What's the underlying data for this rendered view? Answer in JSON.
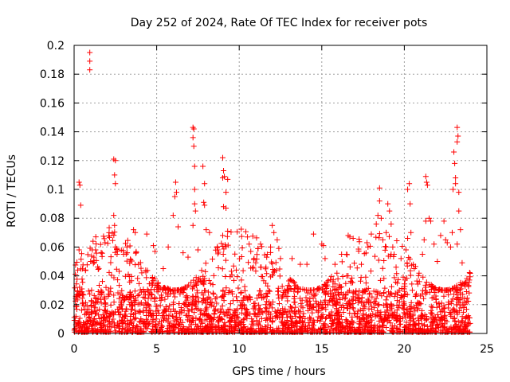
{
  "chart_data": {
    "type": "scatter",
    "title": "Day 252 of 2024, Rate Of TEC Index for receiver pots",
    "xlabel": "GPS time / hours",
    "ylabel": "ROTI / TECUs",
    "xlim": [
      0,
      25
    ],
    "ylim": [
      0,
      0.2
    ],
    "x_ticks": [
      0,
      5,
      10,
      15,
      20,
      25
    ],
    "x_tick_labels": [
      "0",
      "5",
      "10",
      "15",
      "20",
      "25"
    ],
    "y_ticks": [
      0,
      0.02,
      0.04,
      0.06,
      0.08,
      0.1,
      0.12,
      0.14,
      0.16,
      0.18,
      0.2
    ],
    "y_tick_labels": [
      "0",
      "0.02",
      "0.04",
      "0.06",
      "0.08",
      "0.1",
      "0.12",
      "0.14",
      "0.16",
      "0.18",
      "0.2"
    ],
    "grid": true,
    "marker": "+",
    "color": "#ff0000",
    "x_extent_hours": [
      0,
      24
    ],
    "baseline_band": {
      "low": 0.0,
      "high": 0.03
    },
    "series": [
      {
        "name": "ROTI",
        "points": [
          [
            0.3,
            0.105
          ],
          [
            0.35,
            0.103
          ],
          [
            0.4,
            0.089
          ],
          [
            0.3,
            0.058
          ],
          [
            0.95,
            0.195
          ],
          [
            0.95,
            0.189
          ],
          [
            0.95,
            0.183
          ],
          [
            1.1,
            0.058
          ],
          [
            1.2,
            0.053
          ],
          [
            1.3,
            0.058
          ],
          [
            1.0,
            0.05
          ],
          [
            2.4,
            0.121
          ],
          [
            2.5,
            0.12
          ],
          [
            2.45,
            0.11
          ],
          [
            2.5,
            0.104
          ],
          [
            2.4,
            0.082
          ],
          [
            2.45,
            0.075
          ],
          [
            2.5,
            0.06
          ],
          [
            2.6,
            0.055
          ],
          [
            3.0,
            0.055
          ],
          [
            3.2,
            0.06
          ],
          [
            3.6,
            0.072
          ],
          [
            3.7,
            0.07
          ],
          [
            3.9,
            0.048
          ],
          [
            4.4,
            0.069
          ],
          [
            4.8,
            0.061
          ],
          [
            4.9,
            0.057
          ],
          [
            5.4,
            0.045
          ],
          [
            5.7,
            0.06
          ],
          [
            6.0,
            0.082
          ],
          [
            6.1,
            0.095
          ],
          [
            6.15,
            0.105
          ],
          [
            6.2,
            0.098
          ],
          [
            6.3,
            0.074
          ],
          [
            6.6,
            0.056
          ],
          [
            6.9,
            0.053
          ],
          [
            7.2,
            0.143
          ],
          [
            7.25,
            0.142
          ],
          [
            7.2,
            0.136
          ],
          [
            7.25,
            0.13
          ],
          [
            7.3,
            0.116
          ],
          [
            7.3,
            0.1
          ],
          [
            7.3,
            0.09
          ],
          [
            7.35,
            0.085
          ],
          [
            7.2,
            0.075
          ],
          [
            7.5,
            0.058
          ],
          [
            7.8,
            0.116
          ],
          [
            7.9,
            0.104
          ],
          [
            7.85,
            0.091
          ],
          [
            7.9,
            0.089
          ],
          [
            8.0,
            0.072
          ],
          [
            8.2,
            0.07
          ],
          [
            8.7,
            0.058
          ],
          [
            9.0,
            0.122
          ],
          [
            9.05,
            0.113
          ],
          [
            9.0,
            0.108
          ],
          [
            9.1,
            0.109
          ],
          [
            9.3,
            0.107
          ],
          [
            9.2,
            0.098
          ],
          [
            9.05,
            0.088
          ],
          [
            9.2,
            0.087
          ],
          [
            9.3,
            0.071
          ],
          [
            9.0,
            0.068
          ],
          [
            10.5,
            0.067
          ],
          [
            10.6,
            0.062
          ],
          [
            10.7,
            0.057
          ],
          [
            10.9,
            0.052
          ],
          [
            11.0,
            0.049
          ],
          [
            11.3,
            0.046
          ],
          [
            11.7,
            0.055
          ],
          [
            11.9,
            0.06
          ],
          [
            12.0,
            0.075
          ],
          [
            12.1,
            0.07
          ],
          [
            12.3,
            0.065
          ],
          [
            12.4,
            0.059
          ],
          [
            12.5,
            0.052
          ],
          [
            13.2,
            0.052
          ],
          [
            13.7,
            0.048
          ],
          [
            14.1,
            0.048
          ],
          [
            14.5,
            0.069
          ],
          [
            15.0,
            0.062
          ],
          [
            15.1,
            0.061
          ],
          [
            15.2,
            0.052
          ],
          [
            15.8,
            0.048
          ],
          [
            16.2,
            0.055
          ],
          [
            16.5,
            0.055
          ],
          [
            16.6,
            0.068
          ],
          [
            16.7,
            0.067
          ],
          [
            16.9,
            0.066
          ],
          [
            17.4,
            0.048
          ],
          [
            17.8,
            0.06
          ],
          [
            18.0,
            0.069
          ],
          [
            18.3,
            0.076
          ],
          [
            18.4,
            0.082
          ],
          [
            18.5,
            0.092
          ],
          [
            18.5,
            0.101
          ],
          [
            18.6,
            0.08
          ],
          [
            18.7,
            0.065
          ],
          [
            18.9,
            0.07
          ],
          [
            19.0,
            0.09
          ],
          [
            19.1,
            0.085
          ],
          [
            19.2,
            0.076
          ],
          [
            19.3,
            0.06
          ],
          [
            19.2,
            0.055
          ],
          [
            19.5,
            0.046
          ],
          [
            19.8,
            0.052
          ],
          [
            20.1,
            0.058
          ],
          [
            20.2,
            0.1
          ],
          [
            20.3,
            0.104
          ],
          [
            20.35,
            0.09
          ],
          [
            20.4,
            0.07
          ],
          [
            20.2,
            0.066
          ],
          [
            20.6,
            0.045
          ],
          [
            21.1,
            0.055
          ],
          [
            21.2,
            0.065
          ],
          [
            21.3,
            0.078
          ],
          [
            21.3,
            0.109
          ],
          [
            21.35,
            0.105
          ],
          [
            21.4,
            0.103
          ],
          [
            21.5,
            0.08
          ],
          [
            21.6,
            0.078
          ],
          [
            21.8,
            0.062
          ],
          [
            22.0,
            0.05
          ],
          [
            22.2,
            0.068
          ],
          [
            22.4,
            0.078
          ],
          [
            22.5,
            0.065
          ],
          [
            22.6,
            0.063
          ],
          [
            22.8,
            0.06
          ],
          [
            22.9,
            0.07
          ],
          [
            22.95,
            0.1
          ],
          [
            23.0,
            0.126
          ],
          [
            23.05,
            0.118
          ],
          [
            23.1,
            0.108
          ],
          [
            23.1,
            0.104
          ],
          [
            23.2,
            0.143
          ],
          [
            23.25,
            0.137
          ],
          [
            23.2,
            0.133
          ],
          [
            23.3,
            0.098
          ],
          [
            23.3,
            0.085
          ],
          [
            23.4,
            0.072
          ],
          [
            23.2,
            0.062
          ],
          [
            23.5,
            0.049
          ]
        ]
      }
    ]
  }
}
